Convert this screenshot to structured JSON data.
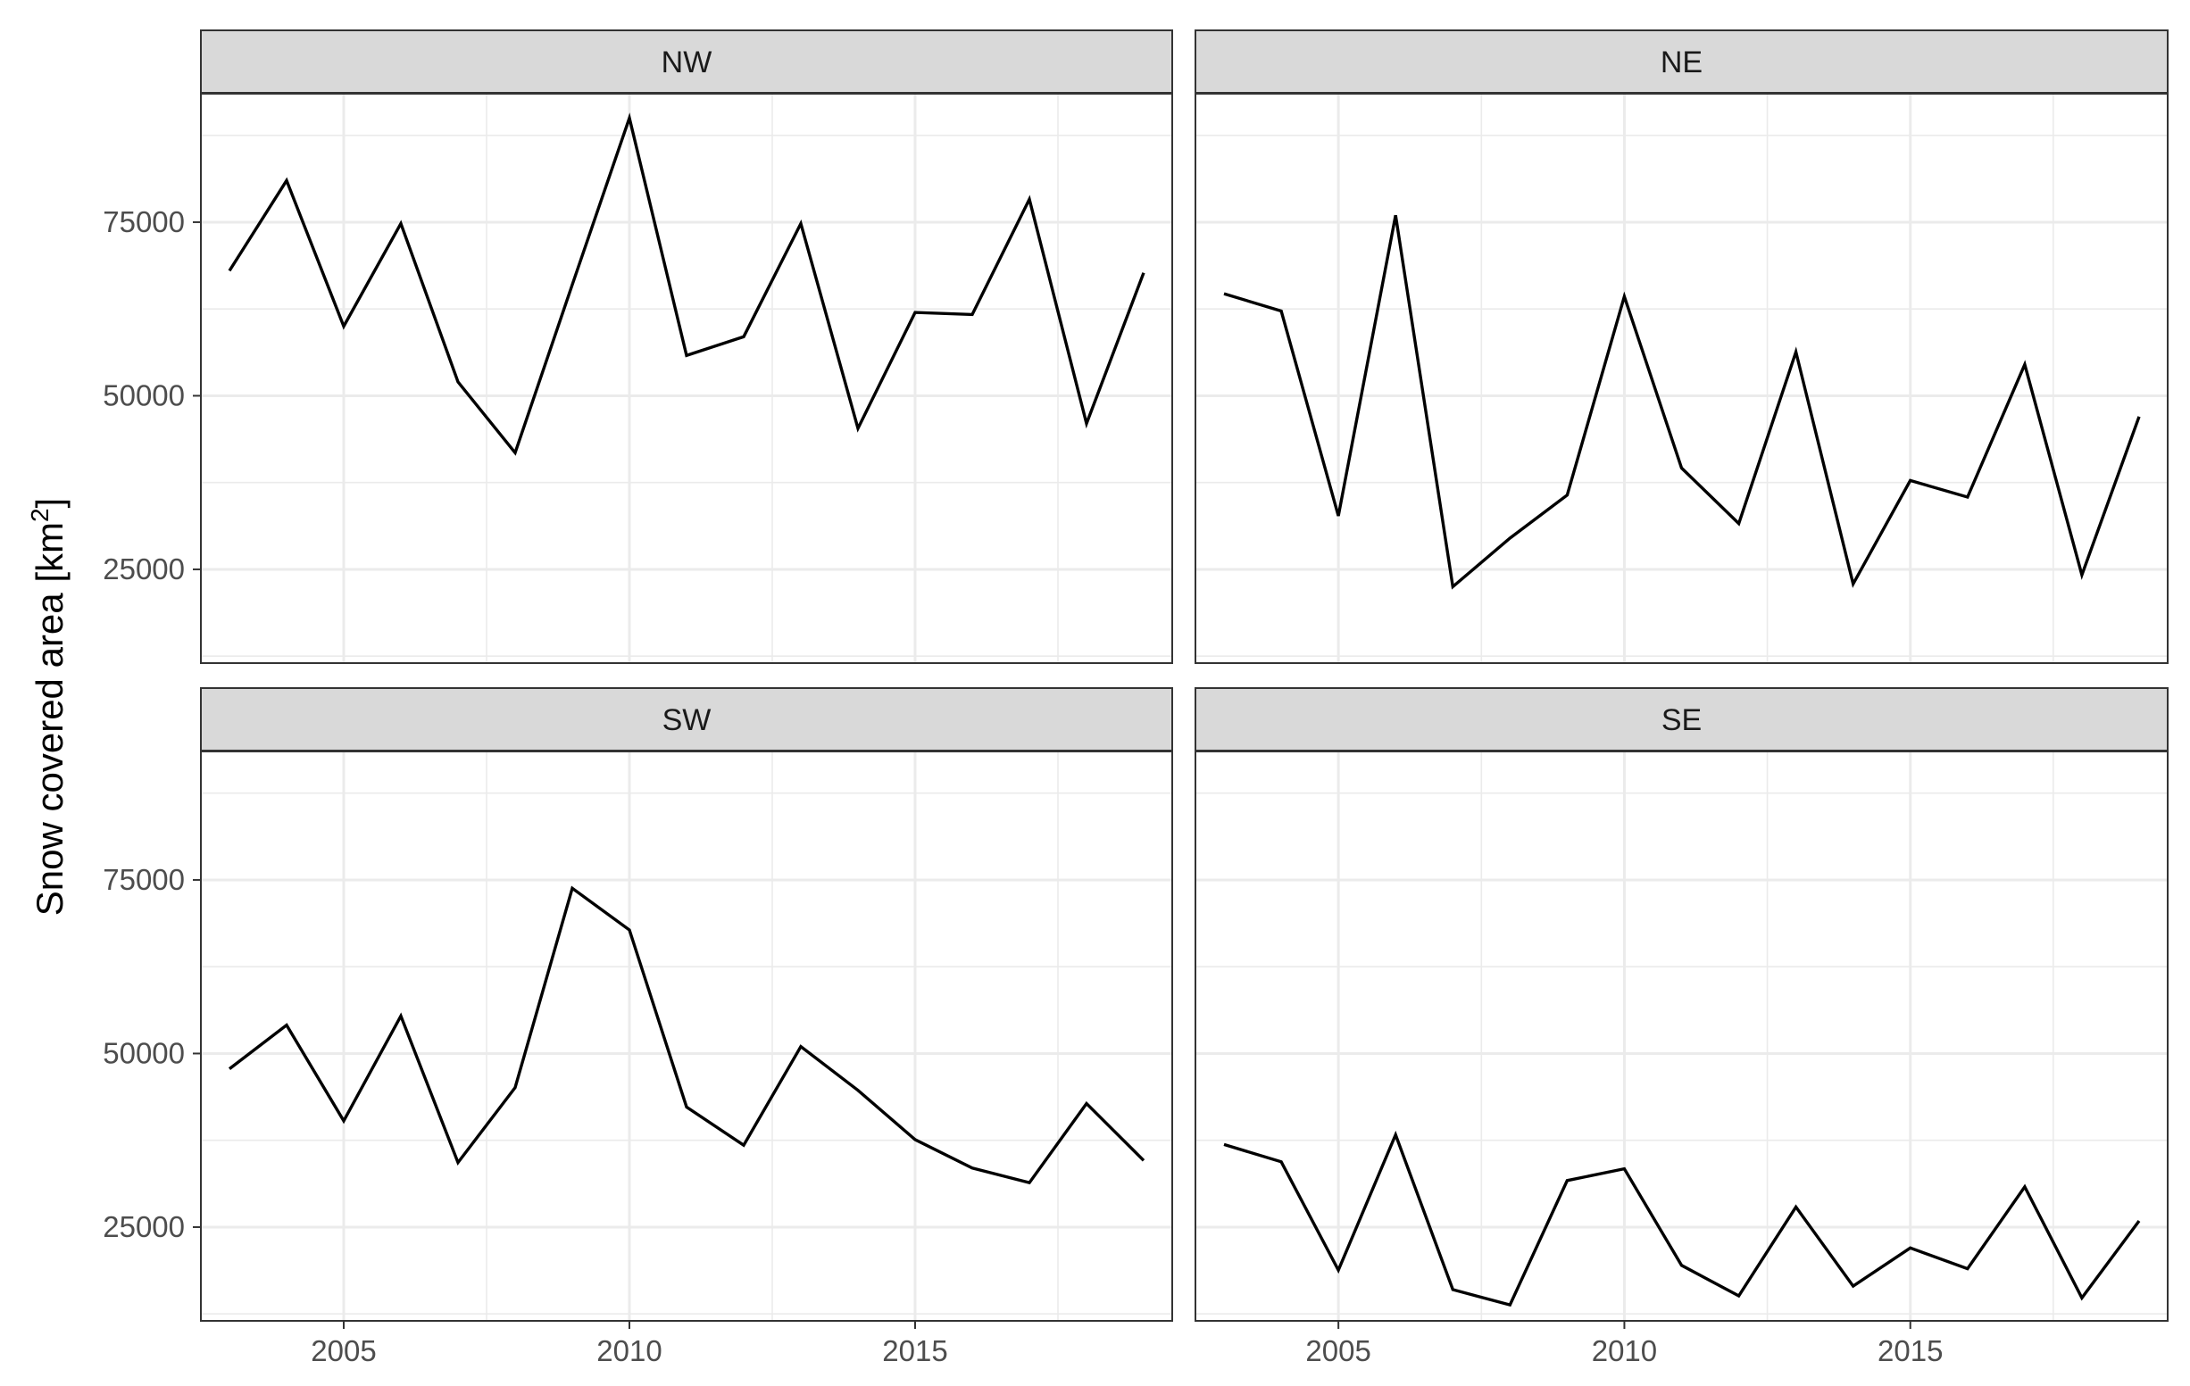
{
  "chart_data": {
    "type": "line",
    "facet_layout": "2x2",
    "ylabel_main": "Snow covered area [km",
    "ylabel_sup": "2",
    "ylabel_end": "]",
    "xlabel": "",
    "xlim": [
      2002.5,
      2019.5
    ],
    "ylim": [
      11500,
      93500
    ],
    "x_ticks": [
      2005,
      2010,
      2015
    ],
    "y_ticks": [
      25000,
      50000,
      75000
    ],
    "grid": true,
    "line_color": "#000000",
    "strip_fill": "#d9d9d9",
    "x": [
      2003,
      2004,
      2005,
      2006,
      2007,
      2008,
      2009,
      2010,
      2011,
      2012,
      2013,
      2014,
      2015,
      2016,
      2017,
      2018,
      2019
    ],
    "panels": [
      {
        "name": "NW",
        "values": [
          68000,
          81000,
          60000,
          74800,
          52000,
          41800,
          66000,
          90000,
          55800,
          58500,
          74800,
          45300,
          62000,
          61700,
          78300,
          46000,
          67700
        ]
      },
      {
        "name": "NE",
        "values": [
          64700,
          62200,
          32700,
          76000,
          22500,
          29500,
          35700,
          64300,
          39600,
          31600,
          56300,
          22900,
          37800,
          35400,
          54500,
          24200,
          47000
        ]
      },
      {
        "name": "SW",
        "values": [
          47800,
          54100,
          40300,
          55400,
          34300,
          45100,
          73800,
          67800,
          42300,
          36800,
          51000,
          44700,
          37600,
          33500,
          31400,
          42800,
          34600
        ]
      },
      {
        "name": "SE",
        "values": [
          36900,
          34400,
          18800,
          38300,
          16000,
          13800,
          31700,
          33400,
          19500,
          15100,
          27900,
          16500,
          22000,
          19000,
          30800,
          14800,
          25900
        ]
      }
    ]
  }
}
